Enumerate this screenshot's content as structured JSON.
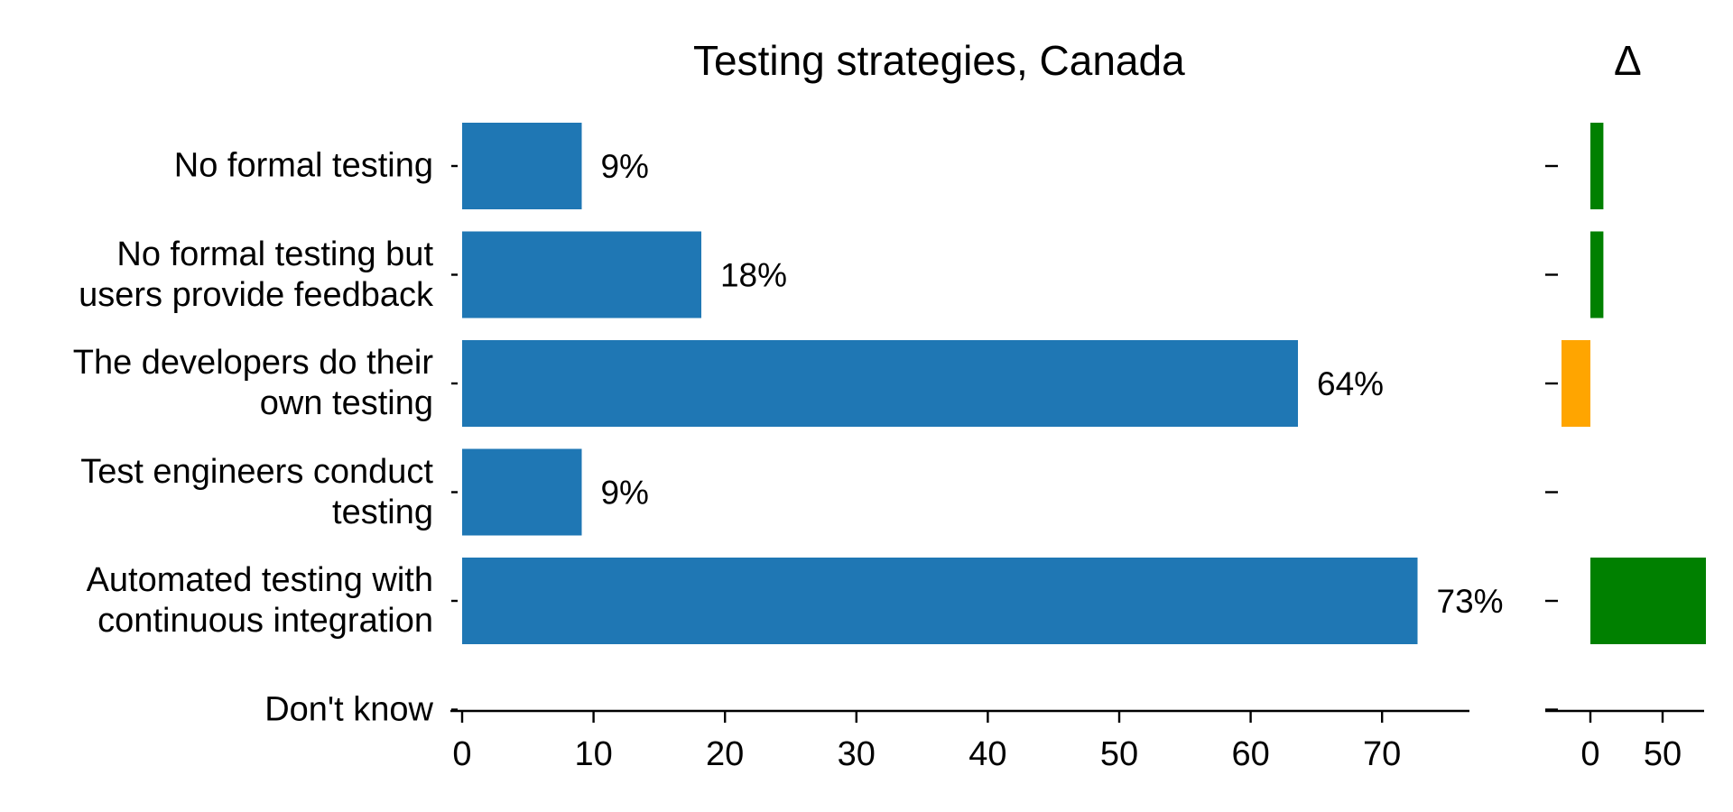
{
  "chart_data": {
    "type": "bar",
    "orientation": "horizontal",
    "title": "Testing strategies, Canada",
    "categories": [
      "No formal testing",
      "No formal testing but\nusers provide feedback",
      "The developers do their\nown testing",
      "Test engineers conduct\ntesting",
      "Automated testing with\ncontinuous integration",
      "Don't know"
    ],
    "values": [
      9.1,
      18.2,
      63.6,
      9.1,
      72.7,
      0
    ],
    "value_labels": [
      "9%",
      "18%",
      "64%",
      "9%",
      "73%",
      ""
    ],
    "bar_color": "#1f77b4",
    "xticks": [
      0,
      10,
      20,
      30,
      40,
      50,
      60,
      70
    ],
    "xlim": [
      0,
      76
    ],
    "grid": false,
    "delta_panel": {
      "title": "Δ",
      "values": [
        9,
        9,
        -20,
        0,
        80,
        null
      ],
      "colors": {
        "positive": "#008000",
        "negative": "#ffa500"
      },
      "xticks": [
        0,
        50
      ],
      "xlim": [
        -36,
        78
      ]
    }
  }
}
